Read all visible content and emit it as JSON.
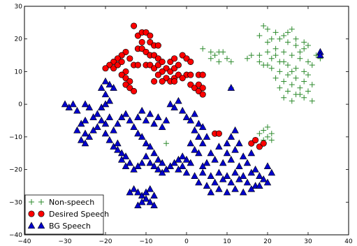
{
  "chart_data": {
    "type": "scatter",
    "xlim": [
      -40,
      40
    ],
    "ylim": [
      -40,
      30
    ],
    "xticks": [
      -40,
      -30,
      -20,
      -10,
      0,
      10,
      20,
      30,
      40
    ],
    "yticks": [
      -40,
      -30,
      -20,
      -10,
      0,
      10,
      20,
      30
    ],
    "xtick_labels": [
      "−40",
      "−30",
      "−20",
      "−10",
      "0",
      "10",
      "20",
      "30",
      "40"
    ],
    "ytick_labels": [
      "−40",
      "−30",
      "−20",
      "−10",
      "0",
      "10",
      "20",
      "30"
    ],
    "grid": false,
    "legend_position": "bottom-left",
    "series": [
      {
        "name": "Non-speech",
        "marker": "plus",
        "color": "#2e8b2e",
        "points": [
          [
            19,
            24
          ],
          [
            20,
            23
          ],
          [
            22,
            22
          ],
          [
            24,
            21
          ],
          [
            26,
            23
          ],
          [
            23,
            20
          ],
          [
            25,
            19
          ],
          [
            27,
            18
          ],
          [
            29,
            17
          ],
          [
            28,
            16
          ],
          [
            30,
            18
          ],
          [
            22,
            17
          ],
          [
            20,
            16
          ],
          [
            18,
            15
          ],
          [
            16,
            15
          ],
          [
            15,
            14
          ],
          [
            24,
            16
          ],
          [
            26,
            15
          ],
          [
            28,
            14
          ],
          [
            30,
            13
          ],
          [
            21,
            14
          ],
          [
            23,
            13
          ],
          [
            25,
            12
          ],
          [
            27,
            11
          ],
          [
            29,
            10
          ],
          [
            31,
            12
          ],
          [
            19,
            12
          ],
          [
            21,
            11
          ],
          [
            23,
            10
          ],
          [
            25,
            9
          ],
          [
            27,
            8
          ],
          [
            29,
            7
          ],
          [
            31,
            6
          ],
          [
            22,
            8
          ],
          [
            24,
            7
          ],
          [
            26,
            6
          ],
          [
            28,
            5
          ],
          [
            30,
            4
          ],
          [
            23,
            5
          ],
          [
            25,
            4
          ],
          [
            27,
            3
          ],
          [
            29,
            2
          ],
          [
            31,
            1
          ],
          [
            24,
            2
          ],
          [
            26,
            1
          ],
          [
            28,
            3
          ],
          [
            30,
            9
          ],
          [
            20,
            19
          ],
          [
            18,
            21
          ],
          [
            21,
            20
          ],
          [
            25,
            22
          ],
          [
            27,
            20
          ],
          [
            29,
            19
          ],
          [
            32,
            15
          ],
          [
            33,
            14
          ],
          [
            20,
            12
          ],
          [
            18,
            13
          ],
          [
            22,
            15
          ],
          [
            24,
            13
          ],
          [
            26,
            10
          ],
          [
            4,
            17
          ],
          [
            6,
            16
          ],
          [
            7,
            15
          ],
          [
            8,
            16
          ],
          [
            9,
            16
          ],
          [
            10,
            14
          ],
          [
            8,
            13
          ],
          [
            6,
            14
          ],
          [
            11,
            13
          ],
          [
            11,
            5
          ],
          [
            19,
            -8
          ],
          [
            20,
            -7
          ],
          [
            21,
            -9
          ],
          [
            20,
            -10
          ],
          [
            19,
            -11
          ],
          [
            18,
            -9
          ],
          [
            21,
            -11
          ],
          [
            -5,
            -12
          ]
        ]
      },
      {
        "name": "Desired Speech",
        "marker": "circle",
        "color": "#ff0000",
        "points": [
          [
            -13,
            24
          ],
          [
            -12,
            21
          ],
          [
            -11,
            22
          ],
          [
            -10,
            22
          ],
          [
            -9,
            21
          ],
          [
            -11,
            19
          ],
          [
            -9,
            19
          ],
          [
            -8,
            18
          ],
          [
            -7,
            18
          ],
          [
            -12,
            17
          ],
          [
            -11,
            17
          ],
          [
            -10,
            16
          ],
          [
            -9,
            15
          ],
          [
            -8,
            15
          ],
          [
            -7,
            14
          ],
          [
            -15,
            16
          ],
          [
            -16,
            15
          ],
          [
            -17,
            14
          ],
          [
            -18,
            13
          ],
          [
            -19,
            12
          ],
          [
            -20,
            11
          ],
          [
            -18,
            11
          ],
          [
            -17,
            12
          ],
          [
            -16,
            13
          ],
          [
            -14,
            14
          ],
          [
            -13,
            12
          ],
          [
            -12,
            12
          ],
          [
            -10,
            12
          ],
          [
            -9,
            12
          ],
          [
            -8,
            11
          ],
          [
            -7,
            12
          ],
          [
            -6,
            13
          ],
          [
            -5,
            11
          ],
          [
            -4,
            10
          ],
          [
            -3,
            11
          ],
          [
            -2,
            12
          ],
          [
            -4,
            13
          ],
          [
            -3,
            14
          ],
          [
            -6,
            10
          ],
          [
            -7,
            9
          ],
          [
            -5,
            8
          ],
          [
            -4,
            7
          ],
          [
            -3,
            8
          ],
          [
            -2,
            9
          ],
          [
            -1,
            15
          ],
          [
            0,
            14
          ],
          [
            1,
            13
          ],
          [
            0,
            9
          ],
          [
            -1,
            8
          ],
          [
            1,
            9
          ],
          [
            3,
            9
          ],
          [
            4,
            9
          ],
          [
            -15,
            10
          ],
          [
            -16,
            9
          ],
          [
            -15,
            8
          ],
          [
            -14,
            7
          ],
          [
            -15,
            6
          ],
          [
            -14,
            5
          ],
          [
            -13,
            4
          ],
          [
            -8,
            7
          ],
          [
            -6,
            7
          ],
          [
            -3,
            7
          ],
          [
            1,
            6
          ],
          [
            2,
            5
          ],
          [
            3,
            4
          ],
          [
            4,
            3
          ],
          [
            3,
            6
          ],
          [
            4,
            5
          ],
          [
            7,
            -9
          ],
          [
            8,
            -9
          ],
          [
            16,
            -12
          ],
          [
            17,
            -11
          ],
          [
            18,
            -13
          ],
          [
            19,
            -12
          ]
        ]
      },
      {
        "name": "BG Speech",
        "marker": "triangle",
        "color": "#0000cc",
        "points": [
          [
            -30,
            0
          ],
          [
            -29,
            -1
          ],
          [
            -28,
            0
          ],
          [
            -27,
            -2
          ],
          [
            -25,
            0
          ],
          [
            -24,
            -1
          ],
          [
            -22,
            -3
          ],
          [
            -21,
            -1
          ],
          [
            -20,
            0
          ],
          [
            -19,
            1
          ],
          [
            -20,
            3
          ],
          [
            -21,
            5
          ],
          [
            -19,
            6
          ],
          [
            -20,
            7
          ],
          [
            -18,
            5
          ],
          [
            -19,
            -4
          ],
          [
            -20,
            -6
          ],
          [
            -21,
            -5
          ],
          [
            -22,
            -7
          ],
          [
            -23,
            -8
          ],
          [
            -24,
            -10
          ],
          [
            -25,
            -9
          ],
          [
            -26,
            -11
          ],
          [
            -25,
            -12
          ],
          [
            -27,
            -8
          ],
          [
            -26,
            -6
          ],
          [
            -25,
            -5
          ],
          [
            -23,
            -4
          ],
          [
            -20,
            -9
          ],
          [
            -19,
            -11
          ],
          [
            -18,
            -13
          ],
          [
            -17,
            -14
          ],
          [
            -16,
            -15
          ],
          [
            -15,
            -16
          ],
          [
            -14,
            -18
          ],
          [
            -15,
            -19
          ],
          [
            -16,
            -17
          ],
          [
            -17,
            -12
          ],
          [
            -18,
            -8
          ],
          [
            -17,
            -6
          ],
          [
            -16,
            -4
          ],
          [
            -15,
            -3
          ],
          [
            -14,
            -5
          ],
          [
            -13,
            -7
          ],
          [
            -12,
            -9
          ],
          [
            -11,
            -10
          ],
          [
            -10,
            -12
          ],
          [
            -9,
            -13
          ],
          [
            -8,
            -15
          ],
          [
            -7,
            -17
          ],
          [
            -6,
            -18
          ],
          [
            -5,
            -20
          ],
          [
            -4,
            -19
          ],
          [
            -3,
            -18
          ],
          [
            -2,
            -17
          ],
          [
            -1,
            -16
          ],
          [
            -10,
            -16
          ],
          [
            -11,
            -18
          ],
          [
            -12,
            -19
          ],
          [
            -13,
            -20
          ],
          [
            -9,
            -18
          ],
          [
            -8,
            -19
          ],
          [
            -7,
            -20
          ],
          [
            -6,
            -21
          ],
          [
            -12,
            -4
          ],
          [
            -11,
            -2
          ],
          [
            -10,
            -5
          ],
          [
            -9,
            -3
          ],
          [
            -8,
            -6
          ],
          [
            -7,
            -4
          ],
          [
            -6,
            -7
          ],
          [
            -5,
            -5
          ],
          [
            -13,
            -26
          ],
          [
            -12,
            -27
          ],
          [
            -11,
            -28
          ],
          [
            -10,
            -29
          ],
          [
            -9,
            -30
          ],
          [
            -8,
            -31
          ],
          [
            -11,
            -30
          ],
          [
            -12,
            -31
          ],
          [
            -10,
            -27
          ],
          [
            -14,
            -27
          ],
          [
            -9,
            -26
          ],
          [
            -8,
            -28
          ],
          [
            -4,
            0
          ],
          [
            -3,
            -1
          ],
          [
            -2,
            1
          ],
          [
            -1,
            -2
          ],
          [
            0,
            -4
          ],
          [
            1,
            -5
          ],
          [
            2,
            -3
          ],
          [
            3,
            -6
          ],
          [
            4,
            -7
          ],
          [
            2,
            -8
          ],
          [
            3,
            -10
          ],
          [
            1,
            -12
          ],
          [
            2,
            -14
          ],
          [
            4,
            -12
          ],
          [
            5,
            -10
          ],
          [
            3,
            -15
          ],
          [
            1,
            -18
          ],
          [
            0,
            -17
          ],
          [
            -1,
            -19
          ],
          [
            -2,
            -20
          ],
          [
            0,
            -21
          ],
          [
            2,
            -22
          ],
          [
            4,
            -21
          ],
          [
            6,
            -22
          ],
          [
            8,
            -21
          ],
          [
            10,
            -22
          ],
          [
            12,
            -21
          ],
          [
            14,
            -22
          ],
          [
            16,
            -21
          ],
          [
            18,
            -22
          ],
          [
            19,
            -23
          ],
          [
            3,
            -24
          ],
          [
            5,
            -25
          ],
          [
            7,
            -24
          ],
          [
            9,
            -23
          ],
          [
            11,
            -24
          ],
          [
            13,
            -23
          ],
          [
            15,
            -24
          ],
          [
            17,
            -25
          ],
          [
            6,
            -27
          ],
          [
            8,
            -26
          ],
          [
            10,
            -27
          ],
          [
            12,
            -26
          ],
          [
            14,
            -27
          ],
          [
            16,
            -26
          ],
          [
            18,
            -25
          ],
          [
            20,
            -24
          ],
          [
            21,
            -21
          ],
          [
            20,
            -19
          ],
          [
            9,
            -18
          ],
          [
            11,
            -17
          ],
          [
            13,
            -19
          ],
          [
            15,
            -18
          ],
          [
            17,
            -20
          ],
          [
            10,
            -15
          ],
          [
            12,
            -14
          ],
          [
            14,
            -16
          ],
          [
            16,
            -15
          ],
          [
            13,
            -12
          ],
          [
            11,
            -10
          ],
          [
            12,
            -8
          ],
          [
            10,
            -12
          ],
          [
            8,
            -13
          ],
          [
            6,
            -15
          ],
          [
            7,
            -17
          ],
          [
            5,
            -18
          ],
          [
            4,
            -19
          ],
          [
            11,
            5
          ],
          [
            33,
            16
          ],
          [
            33,
            15
          ]
        ]
      }
    ]
  }
}
